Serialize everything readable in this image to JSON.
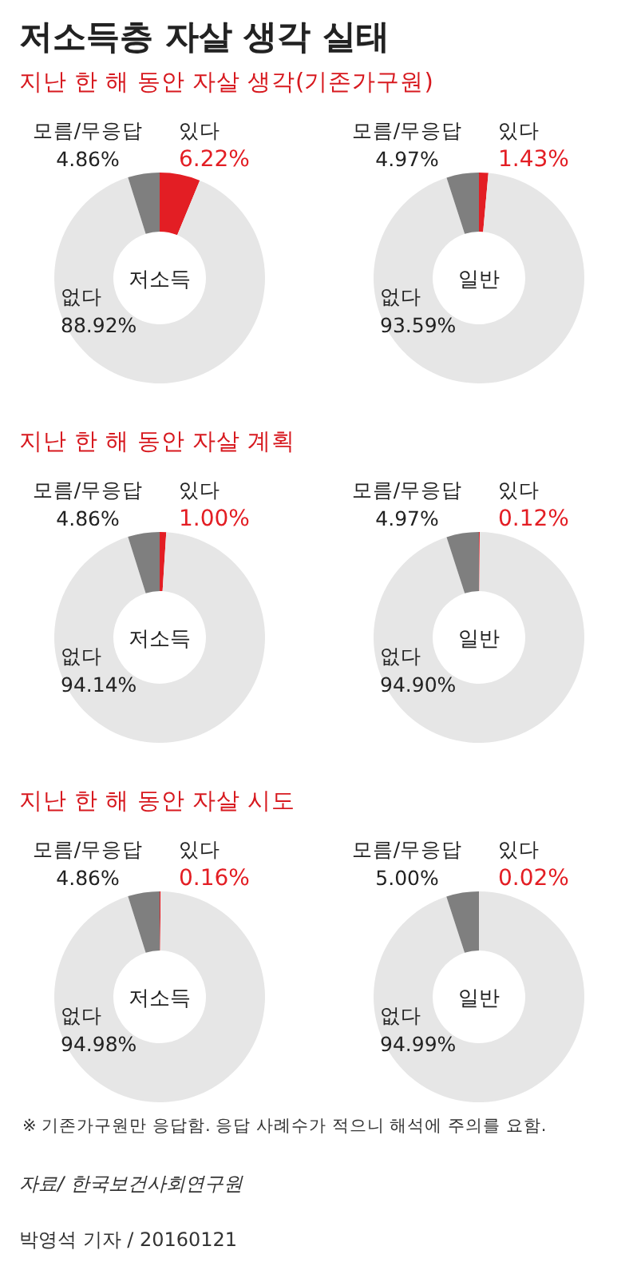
{
  "chart_data": [
    {
      "type": "other",
      "title": "저소득층 자살 생각 실태",
      "annotations": [
        "※ 기존가구원만 응답함.  응답 사례수가 적으니 해석에 주의를 요함.",
        "자료/ 한국보건사회연구원",
        "박영석 기자 / 20160121"
      ]
    },
    {
      "type": "donut",
      "subtitle": "지난 한 해 동안 자살 생각(기존가구원)",
      "title": "저소득",
      "categories": [
        "있다",
        "없다",
        "모름/무응답"
      ],
      "values": [
        6.22,
        88.92,
        4.86
      ],
      "value_labels": [
        "6.22%",
        "88.92%",
        "4.86%"
      ],
      "colors": [
        "#e31e24",
        "#e6e6e6",
        "#7f7f7f"
      ]
    },
    {
      "type": "donut",
      "title": "일반",
      "categories": [
        "있다",
        "없다",
        "모름/무응답"
      ],
      "values": [
        1.43,
        93.59,
        4.97
      ],
      "value_labels": [
        "1.43%",
        "93.59%",
        "4.97%"
      ],
      "colors": [
        "#e31e24",
        "#e6e6e6",
        "#7f7f7f"
      ]
    },
    {
      "type": "donut",
      "subtitle": "지난 한 해 동안 자살 계획",
      "title": "저소득",
      "categories": [
        "있다",
        "없다",
        "모름/무응답"
      ],
      "values": [
        1.0,
        94.14,
        4.86
      ],
      "value_labels": [
        "1.00%",
        "94.14%",
        "4.86%"
      ],
      "colors": [
        "#e31e24",
        "#e6e6e6",
        "#7f7f7f"
      ]
    },
    {
      "type": "donut",
      "title": "일반",
      "categories": [
        "있다",
        "없다",
        "모름/무응답"
      ],
      "values": [
        0.12,
        94.9,
        4.97
      ],
      "value_labels": [
        "0.12%",
        "94.90%",
        "4.97%"
      ],
      "colors": [
        "#e31e24",
        "#e6e6e6",
        "#7f7f7f"
      ]
    },
    {
      "type": "donut",
      "subtitle": "지난 한 해 동안 자살 시도",
      "title": "저소득",
      "categories": [
        "있다",
        "없다",
        "모름/무응답"
      ],
      "values": [
        0.16,
        94.98,
        4.86
      ],
      "value_labels": [
        "0.16%",
        "94.98%",
        "4.86%"
      ],
      "colors": [
        "#e31e24",
        "#e6e6e6",
        "#7f7f7f"
      ]
    },
    {
      "type": "donut",
      "title": "일반",
      "categories": [
        "있다",
        "없다",
        "모름/무응답"
      ],
      "values": [
        0.02,
        94.99,
        5.0
      ],
      "value_labels": [
        "0.02%",
        "94.99%",
        "5.00%"
      ],
      "colors": [
        "#e31e24",
        "#e6e6e6",
        "#7f7f7f"
      ]
    }
  ]
}
